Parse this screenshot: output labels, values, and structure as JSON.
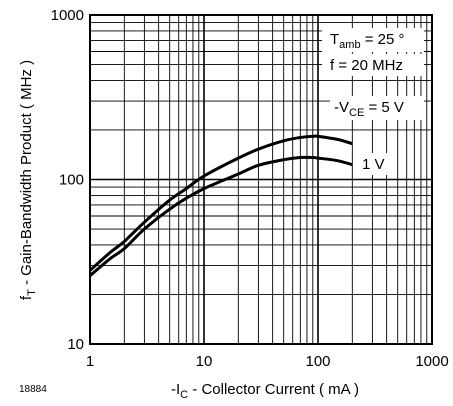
{
  "figure_id": "18884",
  "chart_data": {
    "type": "line",
    "xscale": "log",
    "yscale": "log",
    "xlim": [
      1,
      1000
    ],
    "ylim": [
      10,
      1000
    ],
    "grid": true,
    "x_ticks": [
      "1",
      "10",
      "100",
      "1000"
    ],
    "y_ticks": [
      "10",
      "100",
      "1000"
    ],
    "xlabel": {
      "prefix": "-I",
      "sub": "C",
      "suffix": " - Collector Current ( mA )"
    },
    "ylabel": {
      "prefix": "f",
      "sub": "T",
      "suffix": " - Gain-Bandwidth Product ( MHz )"
    },
    "annotations": {
      "tamb": {
        "prefix": "T",
        "sub": "amb",
        "suffix": " = 25 °"
      },
      "freq": "f = 20 MHz",
      "vce": {
        "prefix": "-V",
        "sub": "CE",
        "suffix": " = 5 V"
      },
      "series2_label": "1 V"
    },
    "series": [
      {
        "x": [
          1,
          1.5,
          2,
          3,
          5,
          7,
          10,
          20,
          30,
          50,
          70,
          90,
          100,
          150,
          200
        ],
        "values": [
          28,
          36,
          42,
          55,
          75,
          88,
          105,
          135,
          153,
          172,
          180,
          183,
          183,
          175,
          165
        ]
      },
      {
        "x": [
          1,
          1.5,
          2,
          3,
          5,
          7,
          10,
          20,
          30,
          50,
          70,
          90,
          100,
          150,
          200
        ],
        "values": [
          26,
          33,
          38,
          50,
          66,
          77,
          88,
          108,
          122,
          132,
          136,
          136,
          135,
          130,
          123
        ]
      }
    ]
  }
}
